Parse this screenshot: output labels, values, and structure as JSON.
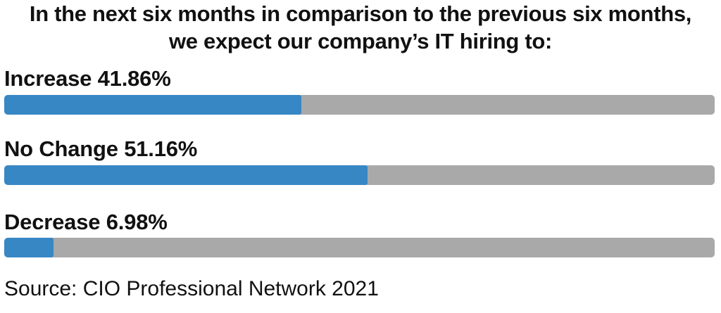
{
  "chart_data": {
    "type": "bar",
    "title_line1": "In the next six months in comparison to the previous six months,",
    "title_line2": "we expect our company’s IT hiring to:",
    "categories": [
      "Increase",
      "No Change",
      "Decrease"
    ],
    "values": [
      41.86,
      51.16,
      6.98
    ],
    "labels": [
      "Increase 41.86%",
      "No Change 51.16%",
      "Decrease 6.98%"
    ],
    "unit": "%",
    "xlim": [
      0,
      100
    ],
    "bar_color": "#3787c5",
    "track_color": "#a9a9a9",
    "source": "Source: CIO Professional Network 2021"
  }
}
